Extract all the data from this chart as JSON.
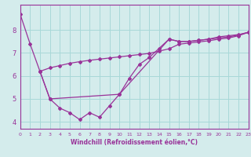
{
  "xlabel": "Windchill (Refroidissement éolien,°C)",
  "bg_color": "#d4ecec",
  "line_color": "#993399",
  "series": [
    {
      "x": [
        0,
        1,
        2,
        3,
        4,
        5,
        6,
        7,
        8,
        9,
        10,
        11,
        12,
        13,
        14,
        15,
        16,
        17,
        18,
        19,
        20,
        21,
        22,
        23
      ],
      "y": [
        8.7,
        7.4,
        6.2,
        5.0,
        4.6,
        4.4,
        4.1,
        4.4,
        4.2,
        4.7,
        5.2,
        5.9,
        6.5,
        6.8,
        7.2,
        7.6,
        7.5,
        7.5,
        7.55,
        7.6,
        7.7,
        7.75,
        7.8,
        7.9
      ]
    },
    {
      "x": [
        2,
        3,
        4,
        5,
        6,
        7,
        8,
        9,
        10,
        11,
        12,
        13,
        14,
        15,
        16,
        17,
        18,
        19,
        20,
        21,
        22,
        23
      ],
      "y": [
        6.2,
        6.35,
        6.45,
        6.55,
        6.62,
        6.68,
        6.73,
        6.78,
        6.83,
        6.88,
        6.93,
        6.98,
        7.08,
        7.18,
        7.38,
        7.43,
        7.48,
        7.53,
        7.6,
        7.65,
        7.75,
        7.9
      ]
    },
    {
      "comment": "connector line: from (2,6.2) -> (3,5.0) -> (10,5.2) -> (15,7.6) -> end",
      "x": [
        2,
        3,
        10,
        15,
        16,
        17,
        18,
        19,
        20,
        21,
        22,
        23
      ],
      "y": [
        6.2,
        5.0,
        5.2,
        7.6,
        7.5,
        7.5,
        7.55,
        7.6,
        7.65,
        7.7,
        7.78,
        7.9
      ]
    }
  ],
  "xlim": [
    0,
    23
  ],
  "ylim": [
    3.7,
    9.1
  ],
  "yticks": [
    4,
    5,
    6,
    7,
    8
  ],
  "xticks": [
    0,
    1,
    2,
    3,
    4,
    5,
    6,
    7,
    8,
    9,
    10,
    11,
    12,
    13,
    14,
    15,
    16,
    17,
    18,
    19,
    20,
    21,
    22,
    23
  ],
  "grid_color": "#a8d8d8",
  "marker": "D",
  "marker_size": 2.0,
  "line_width": 0.9
}
